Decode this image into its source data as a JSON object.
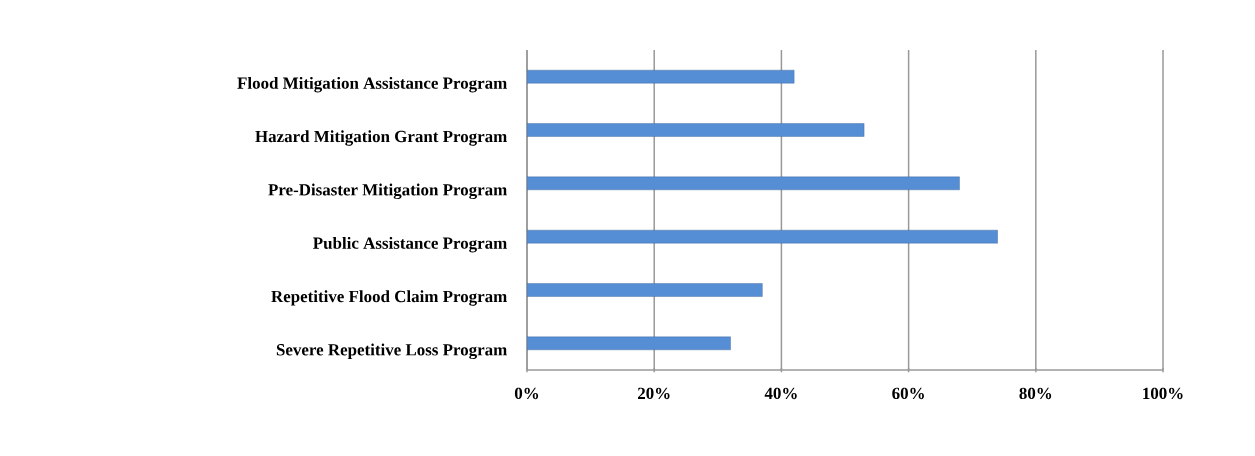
{
  "chart_data": {
    "type": "bar",
    "orientation": "horizontal",
    "categories": [
      "Flood Mitigation Assistance Program",
      "Hazard Mitigation Grant Program",
      "Pre-Disaster Mitigation Program",
      "Public Assistance Program",
      "Repetitive Flood Claim Program",
      "Severe Repetitive Loss Program"
    ],
    "values": [
      42,
      53,
      68,
      74,
      37,
      32
    ],
    "color": "#558ed5",
    "xlim": [
      0,
      100
    ],
    "xticks": [
      {
        "value": 0,
        "label": "0%"
      },
      {
        "value": 20,
        "label": "20%"
      },
      {
        "value": 40,
        "label": "40%"
      },
      {
        "value": 60,
        "label": "60%"
      },
      {
        "value": 80,
        "label": "80%"
      },
      {
        "value": 100,
        "label": "100%"
      }
    ],
    "grid": "x"
  }
}
